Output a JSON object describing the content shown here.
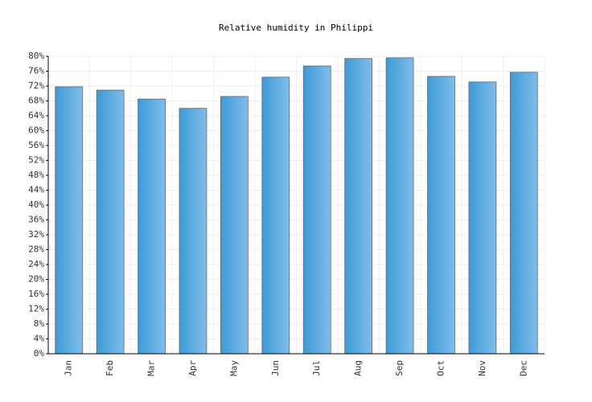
{
  "chart_data": {
    "type": "bar",
    "title": "Relative humidity in Philippi",
    "categories": [
      "Jan",
      "Feb",
      "Mar",
      "Apr",
      "May",
      "Jun",
      "Jul",
      "Aug",
      "Sep",
      "Oct",
      "Nov",
      "Dec"
    ],
    "values": [
      71.8,
      70.9,
      68.5,
      66,
      69.2,
      74.4,
      77.4,
      79.4,
      79.6,
      74.6,
      73.1,
      75.7
    ],
    "color": "#3d9bd7",
    "ylim": [
      0,
      80
    ],
    "yticks": [
      {
        "value": 0,
        "label": "0%"
      },
      {
        "value": 4,
        "label": "4%"
      },
      {
        "value": 8,
        "label": "8%"
      },
      {
        "value": 12,
        "label": "12%"
      },
      {
        "value": 16,
        "label": "16%"
      },
      {
        "value": 20,
        "label": "20%"
      },
      {
        "value": 24,
        "label": "24%"
      },
      {
        "value": 28,
        "label": "28%"
      },
      {
        "value": 32,
        "label": "32%"
      },
      {
        "value": 36,
        "label": "36%"
      },
      {
        "value": 40,
        "label": "40%"
      },
      {
        "value": 44,
        "label": "44%"
      },
      {
        "value": 48,
        "label": "48%"
      },
      {
        "value": 52,
        "label": "52%"
      },
      {
        "value": 56,
        "label": "56%"
      },
      {
        "value": 60,
        "label": "60%"
      },
      {
        "value": 64,
        "label": "64%"
      },
      {
        "value": 68,
        "label": "68%"
      },
      {
        "value": 72,
        "label": "72%"
      },
      {
        "value": 76,
        "label": "76%"
      },
      {
        "value": 80,
        "label": "80%"
      }
    ],
    "grid": true
  }
}
